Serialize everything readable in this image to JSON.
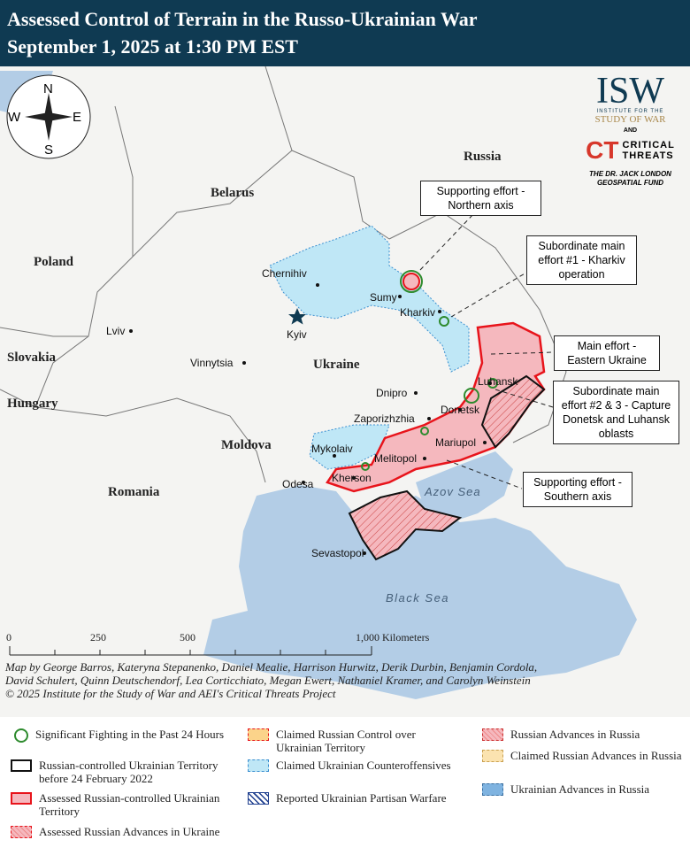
{
  "header": {
    "title_line1": "Assessed Control of Terrain in the Russo-Ukrainian War",
    "title_line2": "September 1, 2025 at 1:30 PM EST"
  },
  "compass": {
    "n": "N",
    "s": "S",
    "e": "E",
    "w": "W"
  },
  "logo": {
    "isw": "ISW",
    "isw_sub1": "INSTITUTE FOR THE",
    "isw_sub2": "STUDY OF WAR",
    "and": "AND",
    "ct": "CT",
    "ct_text1": "CRITICAL",
    "ct_text2": "THREATS",
    "fund1": "THE DR. JACK LONDON",
    "fund2": "GEOSPATIAL FUND"
  },
  "countries": {
    "russia": "Russia",
    "belarus": "Belarus",
    "poland": "Poland",
    "slovakia": "Slovakia",
    "hungary": "Hungary",
    "moldova": "Moldova",
    "romania": "Romania",
    "ukraine": "Ukraine"
  },
  "cities": {
    "chernihiv": "Chernihiv",
    "kyiv": "Kyiv",
    "sumy": "Sumy",
    "kharkiv": "Kharkiv",
    "lviv": "Lviv",
    "vinnytsia": "Vinnytsia",
    "dnipro": "Dnipro",
    "luhansk": "Luhansk",
    "donetsk": "Donetsk",
    "zaporizhzhia": "Zaporizhzhia",
    "mariupol": "Mariupol",
    "mykolaiv": "Mykolaiv",
    "melitopol": "Melitopol",
    "kherson": "Kherson",
    "odesa": "Odesa",
    "sevastopol": "Sevastopol"
  },
  "seas": {
    "azov": "Azov Sea",
    "black": "Black Sea"
  },
  "callouts": {
    "northern": "Supporting effort - Northern axis",
    "kharkiv": "Subordinate main effort #1 - Kharkiv operation",
    "eastern": "Main effort - Eastern Ukraine",
    "donetsk": "Subordinate main effort #2 & 3 - Capture Donetsk and Luhansk oblasts",
    "southern": "Supporting effort - Southern axis"
  },
  "scale": {
    "t0": "0",
    "t250": "250",
    "t500": "500",
    "t1000": "1,000 Kilometers"
  },
  "credits": {
    "line1": "Map by George Barros, Kateryna Stepanenko, Daniel Mealie, Harrison Hurwitz, Derik Durbin, Benjamin Cordola, David Schulert, Quinn Deutschendorf, Lea Corticchiato, Megan Ewert, Nathaniel Kramer, and Carolyn Weinstein",
    "line2": "© 2025 Institute for the Study of War and AEI's Critical Threats Project"
  },
  "legend": [
    {
      "label": "Significant Fighting in the Past 24 Hours"
    },
    {
      "label": "Russian-controlled Ukrainian Territory before 24 February 2022"
    },
    {
      "label": "Assessed Russian-controlled Ukrainian Territory"
    },
    {
      "label": "Assessed Russian Advances in Ukraine"
    },
    {
      "label": "Claimed Russian Control over Ukrainian Territory"
    },
    {
      "label": "Claimed Ukrainian Counteroffensives"
    },
    {
      "label": "Reported Ukrainian Partisan Warfare"
    },
    {
      "label": "Russian Advances in Russia"
    },
    {
      "label": "Claimed Russian Advances in Russia"
    },
    {
      "label": "Ukrainian Advances in Russia"
    }
  ],
  "colors": {
    "header": "#0f3a52",
    "sea": "#b3cde6",
    "russian_control": "#f5b8be",
    "russian_border": "#e8141b",
    "ukr_counter": "#bfe7f6",
    "fighting": "#2e8b2e"
  }
}
